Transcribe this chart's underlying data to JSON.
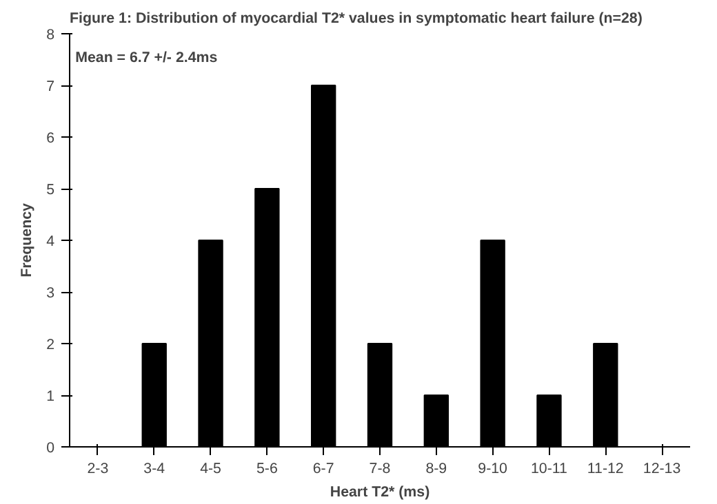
{
  "chart_data": {
    "type": "bar",
    "title": "Figure 1: Distribution of myocardial T2* values in symptomatic heart failure (n=28)",
    "xlabel": "Heart T2* (ms)",
    "ylabel": "Frequency",
    "categories": [
      "2-3",
      "3-4",
      "4-5",
      "5-6",
      "6-7",
      "7-8",
      "8-9",
      "9-10",
      "10-11",
      "11-12",
      "12-13"
    ],
    "values": [
      0,
      2,
      4,
      5,
      7,
      2,
      1,
      4,
      1,
      2,
      0
    ],
    "color": "#000000",
    "ylim": [
      0,
      8
    ],
    "yticks": [
      0,
      1,
      2,
      3,
      4,
      5,
      6,
      7,
      8
    ],
    "grid": false,
    "annotations": [
      "Mean = 6.7 +/- 2.4ms"
    ]
  }
}
